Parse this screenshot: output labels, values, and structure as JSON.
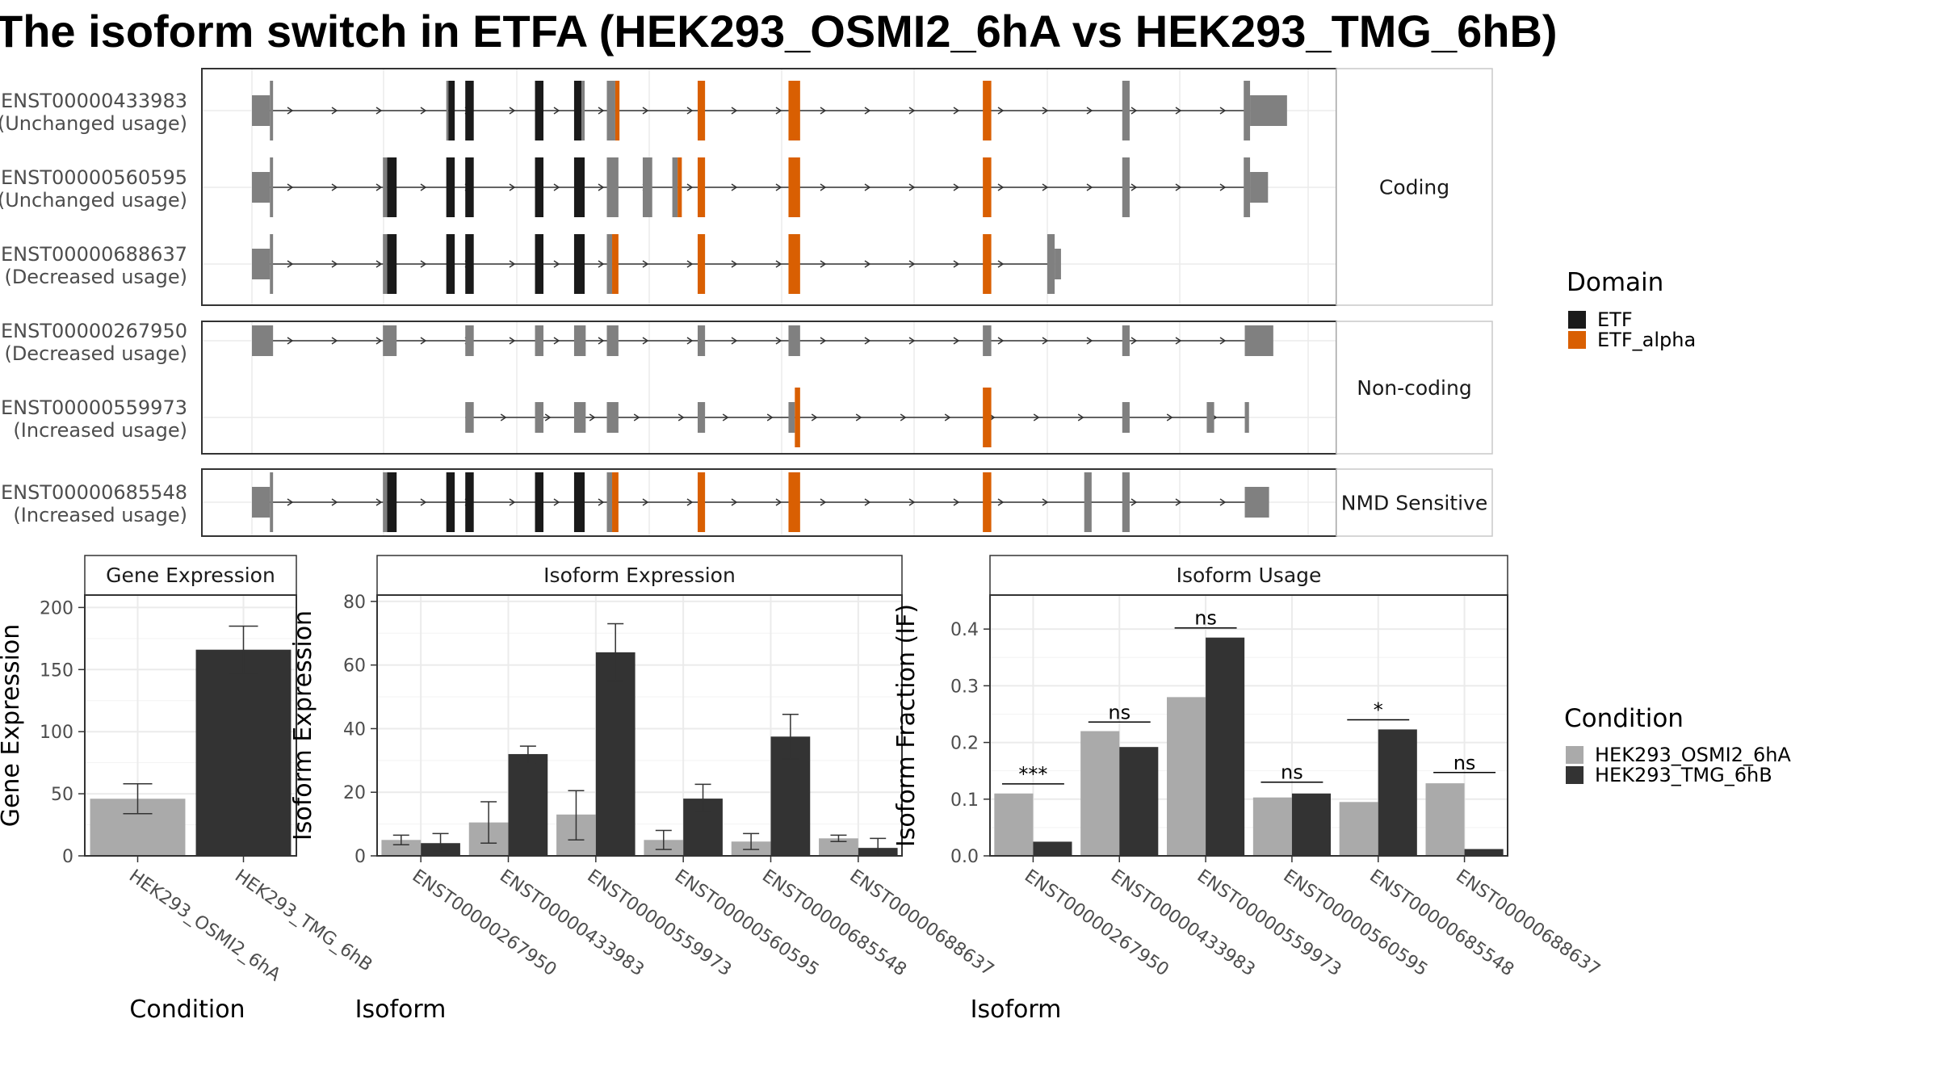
{
  "title": "The isoform switch in ETFA (HEK293_OSMI2_6hA vs HEK293_TMG_6hB)",
  "colors": {
    "exon": "#808080",
    "ETF": "#1a1a1a",
    "ETF_alpha": "#d95f02",
    "cond1": "#aaaaaa",
    "cond2": "#333333",
    "grid": "#ebebeb"
  },
  "transcript_panel": {
    "x_range": [
      0,
      1000
    ],
    "groups": [
      {
        "label": "Coding",
        "transcripts": [
          {
            "id": "ENST00000433983",
            "usage": "(Unchanged usage)",
            "start": 0,
            "end": 945,
            "exons": [
              [
                0,
                17,
                "utr"
              ],
              [
                17,
                20,
                "cds"
              ],
              [
                184,
                186,
                "cds"
              ],
              [
                186,
                192,
                "ETF"
              ],
              [
                202,
                210,
                "ETF"
              ],
              [
                268,
                276,
                "ETF"
              ],
              [
                305,
                312,
                "ETF"
              ],
              [
                312,
                315,
                "cds"
              ],
              [
                336,
                344,
                "cds"
              ],
              [
                344,
                348,
                "ETF_alpha"
              ],
              [
                422,
                429,
                "ETF_alpha"
              ],
              [
                508,
                519,
                "ETF_alpha"
              ],
              [
                692,
                700,
                "ETF_alpha"
              ],
              [
                824,
                831,
                "cds"
              ],
              [
                939,
                945,
                "cds"
              ],
              [
                945,
                980,
                "utr"
              ]
            ]
          },
          {
            "id": "ENST00000560595",
            "usage": "(Unchanged usage)",
            "start": 0,
            "end": 945,
            "exons": [
              [
                0,
                17,
                "utr"
              ],
              [
                17,
                20,
                "cds"
              ],
              [
                124,
                128,
                "cds"
              ],
              [
                128,
                137,
                "ETF"
              ],
              [
                184,
                192,
                "ETF"
              ],
              [
                202,
                210,
                "ETF"
              ],
              [
                268,
                276,
                "ETF"
              ],
              [
                305,
                315,
                "ETF"
              ],
              [
                336,
                347,
                "cds"
              ],
              [
                370,
                379,
                "cds"
              ],
              [
                398,
                403,
                "cds"
              ],
              [
                403,
                407,
                "ETF_alpha"
              ],
              [
                422,
                429,
                "ETF_alpha"
              ],
              [
                508,
                519,
                "ETF_alpha"
              ],
              [
                692,
                700,
                "ETF_alpha"
              ],
              [
                824,
                831,
                "cds"
              ],
              [
                939,
                945,
                "cds"
              ],
              [
                945,
                962,
                "utr"
              ]
            ]
          },
          {
            "id": "ENST00000688637",
            "usage": "(Decreased usage)",
            "start": 0,
            "end": 760,
            "exons": [
              [
                0,
                17,
                "utr"
              ],
              [
                17,
                20,
                "cds"
              ],
              [
                124,
                128,
                "cds"
              ],
              [
                128,
                137,
                "ETF"
              ],
              [
                184,
                192,
                "ETF"
              ],
              [
                202,
                210,
                "ETF"
              ],
              [
                268,
                276,
                "ETF"
              ],
              [
                305,
                315,
                "ETF"
              ],
              [
                336,
                341,
                "cds"
              ],
              [
                341,
                347,
                "ETF_alpha"
              ],
              [
                422,
                429,
                "ETF_alpha"
              ],
              [
                508,
                519,
                "ETF_alpha"
              ],
              [
                692,
                700,
                "ETF_alpha"
              ],
              [
                753,
                760,
                "cds"
              ],
              [
                760,
                766,
                "utr"
              ]
            ]
          }
        ]
      },
      {
        "label": "Non-coding",
        "transcripts": [
          {
            "id": "ENST00000267950",
            "usage": "(Decreased usage)",
            "start": 0,
            "end": 940,
            "exons": [
              [
                0,
                20,
                "nc"
              ],
              [
                124,
                137,
                "nc"
              ],
              [
                202,
                210,
                "nc"
              ],
              [
                268,
                276,
                "nc"
              ],
              [
                305,
                316,
                "nc"
              ],
              [
                336,
                347,
                "nc"
              ],
              [
                422,
                429,
                "nc"
              ],
              [
                508,
                519,
                "nc"
              ],
              [
                692,
                700,
                "nc"
              ],
              [
                824,
                831,
                "nc"
              ],
              [
                940,
                967,
                "nc"
              ]
            ]
          },
          {
            "id": "ENST00000559973",
            "usage": "(Increased usage)",
            "start": 202,
            "end": 940,
            "exons": [
              [
                202,
                210,
                "nc"
              ],
              [
                268,
                276,
                "nc"
              ],
              [
                305,
                316,
                "nc"
              ],
              [
                336,
                347,
                "nc"
              ],
              [
                422,
                429,
                "nc"
              ],
              [
                508,
                514,
                "nc"
              ],
              [
                514,
                519,
                "ETF_alpha"
              ],
              [
                692,
                700,
                "ETF_alpha"
              ],
              [
                824,
                831,
                "nc"
              ],
              [
                904,
                911,
                "nc"
              ],
              [
                940,
                944,
                "nc"
              ]
            ]
          }
        ]
      },
      {
        "label": "NMD Sensitive",
        "transcripts": [
          {
            "id": "ENST00000685548",
            "usage": "(Increased usage)",
            "start": 0,
            "end": 940,
            "exons": [
              [
                0,
                17,
                "utr"
              ],
              [
                17,
                20,
                "cds"
              ],
              [
                124,
                128,
                "cds"
              ],
              [
                128,
                137,
                "ETF"
              ],
              [
                184,
                192,
                "ETF"
              ],
              [
                202,
                210,
                "ETF"
              ],
              [
                268,
                276,
                "ETF"
              ],
              [
                305,
                315,
                "ETF"
              ],
              [
                336,
                341,
                "cds"
              ],
              [
                341,
                347,
                "ETF_alpha"
              ],
              [
                422,
                429,
                "ETF_alpha"
              ],
              [
                508,
                519,
                "ETF_alpha"
              ],
              [
                692,
                700,
                "ETF_alpha"
              ],
              [
                788,
                795,
                "cds"
              ],
              [
                824,
                831,
                "cds"
              ],
              [
                940,
                963,
                "utr"
              ]
            ]
          }
        ]
      }
    ]
  },
  "domain_legend": {
    "title": "Domain",
    "items": [
      {
        "label": "ETF",
        "color": "#1a1a1a"
      },
      {
        "label": "ETF_alpha",
        "color": "#d95f02"
      }
    ]
  },
  "condition_legend": {
    "title": "Condition",
    "items": [
      {
        "label": "HEK293_OSMI2_6hA",
        "color": "#aaaaaa"
      },
      {
        "label": "HEK293_TMG_6hB",
        "color": "#333333"
      }
    ]
  },
  "chart_data": [
    {
      "type": "bar",
      "strip": "Gene Expression",
      "xlabel": "Condition",
      "ylabel": "Gene Expression",
      "ylim": [
        0,
        210
      ],
      "yticks": [
        0,
        50,
        100,
        150,
        200
      ],
      "categories": [
        "HEK293_OSMI2_6hA",
        "HEK293_TMG_6hB"
      ],
      "values": [
        46,
        166
      ],
      "errors": [
        [
          34,
          58
        ],
        [
          147,
          185
        ]
      ],
      "colors": [
        "#aaaaaa",
        "#333333"
      ]
    },
    {
      "type": "bar",
      "strip": "Isoform Expression",
      "xlabel": "Isoform",
      "ylabel": "Isoform Expression",
      "ylim": [
        0,
        82
      ],
      "yticks": [
        0,
        20,
        40,
        60,
        80
      ],
      "categories": [
        "ENST00000267950",
        "ENST00000433983",
        "ENST00000559973",
        "ENST00000560595",
        "ENST00000685548",
        "ENST00000688637"
      ],
      "series": [
        {
          "values": [
            5,
            10.5,
            13,
            5,
            4.5,
            5.5
          ],
          "errors": [
            [
              3.5,
              6.5
            ],
            [
              4,
              17
            ],
            [
              5,
              20.5
            ],
            [
              2,
              8
            ],
            [
              2,
              7
            ],
            [
              4.5,
              6.5
            ]
          ]
        },
        {
          "values": [
            4,
            32,
            64,
            18,
            37.5,
            2.5
          ],
          "errors": [
            [
              1.5,
              7
            ],
            [
              29,
              34.5
            ],
            [
              55,
              73
            ],
            [
              14,
              22.5
            ],
            [
              30.5,
              44.5
            ],
            [
              0,
              5.5
            ]
          ]
        }
      ]
    },
    {
      "type": "bar",
      "strip": "Isoform Usage",
      "xlabel": "Isoform",
      "ylabel": "Isoform Fraction (IF)",
      "ylim": [
        0,
        0.46
      ],
      "yticks": [
        0,
        0.1,
        0.2,
        0.3,
        0.4
      ],
      "ytick_labels": [
        "0.0",
        "0.1",
        "0.2",
        "0.3",
        "0.4"
      ],
      "categories": [
        "ENST00000267950",
        "ENST00000433983",
        "ENST00000559973",
        "ENST00000560595",
        "ENST00000685548",
        "ENST00000688637"
      ],
      "series": [
        {
          "values": [
            0.11,
            0.22,
            0.28,
            0.103,
            0.095,
            0.128
          ]
        },
        {
          "values": [
            0.025,
            0.192,
            0.385,
            0.11,
            0.223,
            0.012
          ]
        }
      ],
      "significance": [
        "***",
        "ns",
        "ns",
        "ns",
        "*",
        "ns"
      ],
      "sig_level": [
        0.127,
        0.236,
        0.402,
        0.13,
        0.24,
        0.147
      ]
    }
  ]
}
